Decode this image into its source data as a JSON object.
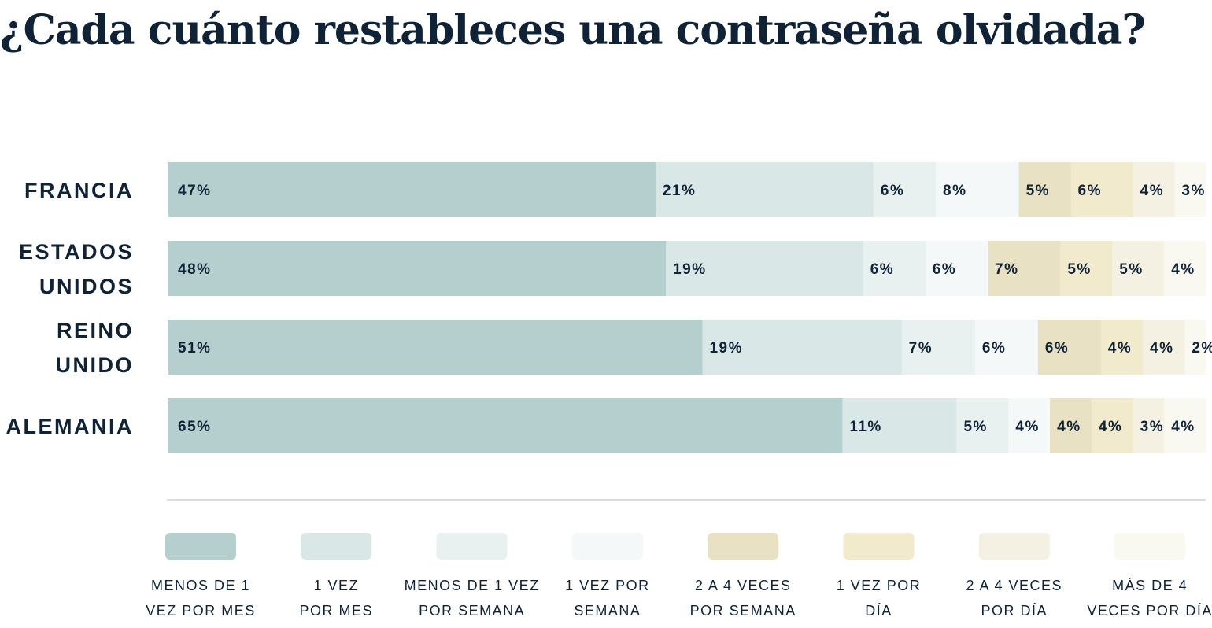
{
  "chart_data": {
    "type": "bar",
    "orientation": "horizontal",
    "stacked": true,
    "title": "¿Cada cuánto restableces una contraseña olvidada?",
    "categories": [
      [
        "FRANCIA"
      ],
      [
        "ESTADOS",
        "UNIDOS"
      ],
      [
        "REINO",
        "UNIDO"
      ],
      [
        "ALEMANIA"
      ]
    ],
    "value_format": "%",
    "series": [
      {
        "label_lines": [
          "MENOS DE 1",
          "VEZ POR MES"
        ],
        "color": "#b5cfcf",
        "values": [
          47,
          48,
          51,
          65
        ]
      },
      {
        "label_lines": [
          "1 VEZ",
          "POR MES"
        ],
        "color": "#d9e8e7",
        "values": [
          21,
          19,
          19,
          11
        ]
      },
      {
        "label_lines": [
          "MENOS DE 1 VEZ",
          "POR SEMANA"
        ],
        "color": "#e8f1f0",
        "values": [
          6,
          6,
          7,
          5
        ]
      },
      {
        "label_lines": [
          "1 VEZ POR",
          "SEMANA"
        ],
        "color": "#f4f8f8",
        "values": [
          8,
          6,
          6,
          4
        ]
      },
      {
        "label_lines": [
          "2 A 4 VECES",
          "POR SEMANA"
        ],
        "color": "#e8e1c4",
        "values": [
          5,
          7,
          6,
          4
        ]
      },
      {
        "label_lines": [
          "1 VEZ POR",
          "DÍA"
        ],
        "color": "#f1eacc",
        "values": [
          6,
          5,
          4,
          4
        ]
      },
      {
        "label_lines": [
          "2 A 4 VECES",
          "POR DÍA"
        ],
        "color": "#f4f1e2",
        "values": [
          4,
          5,
          4,
          3
        ]
      },
      {
        "label_lines": [
          "MÁS DE 4",
          "VECES POR DÍA"
        ],
        "color": "#f9f8f1",
        "values": [
          3,
          4,
          2,
          4
        ]
      }
    ],
    "legend": "bottom",
    "grid": false
  }
}
